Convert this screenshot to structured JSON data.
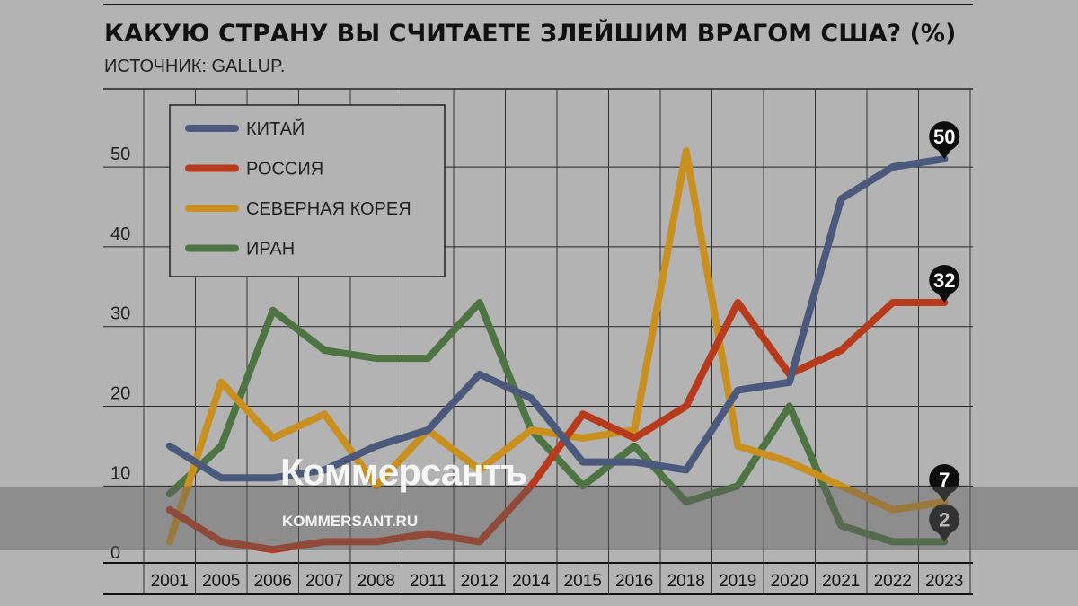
{
  "chart_data": {
    "type": "line",
    "title": "КАКУЮ СТРАНУ ВЫ СЧИТАЕТЕ ЗЛЕЙШИМ ВРАГОМ США? (%)",
    "subtitle": "ИСТОЧНИК: GALLUP.",
    "categories": [
      "2001",
      "2005",
      "2006",
      "2007",
      "2008",
      "2011",
      "2012",
      "2014",
      "2015",
      "2016",
      "2018",
      "2019",
      "2020",
      "2021",
      "2022",
      "2023"
    ],
    "yticks": [
      0,
      10,
      20,
      30,
      40,
      50
    ],
    "ylim": [
      -1,
      59
    ],
    "grid": true,
    "legend_position": "top-left",
    "series": [
      {
        "name": "КИТАЙ",
        "color": "#4b5a7c",
        "values": [
          14,
          10,
          10,
          11,
          14,
          16,
          23,
          20,
          12,
          12,
          11,
          21,
          22,
          45,
          49,
          50
        ]
      },
      {
        "name": "РОССИЯ",
        "color": "#b83a1c",
        "values": [
          6,
          2,
          1,
          2,
          2,
          3,
          2,
          9,
          18,
          15,
          19,
          32,
          23,
          26,
          32,
          32
        ]
      },
      {
        "name": "СЕВЕРНАЯ КОРЕЯ",
        "color": "#c99020",
        "values": [
          2,
          22,
          15,
          18,
          9,
          16,
          11,
          16,
          15,
          16,
          51,
          14,
          12,
          9,
          6,
          7
        ]
      },
      {
        "name": "ИРАН",
        "color": "#4f7444",
        "values": [
          8,
          14,
          31,
          26,
          25,
          25,
          32,
          16,
          9,
          14,
          7,
          9,
          19,
          4,
          2,
          2
        ]
      }
    ],
    "end_labels": [
      "50",
      "32",
      "7",
      "2"
    ]
  },
  "watermark": {
    "brand": "Коммерсантъ",
    "url": "KOMMERSANT.RU"
  }
}
